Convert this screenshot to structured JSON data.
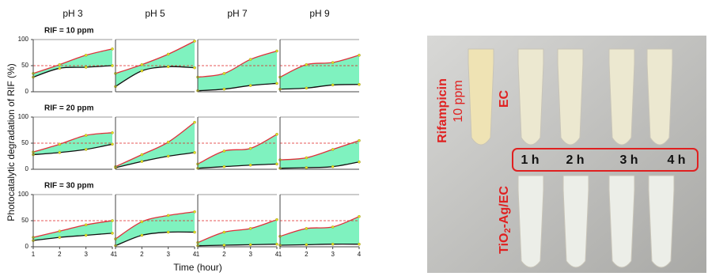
{
  "figure": {
    "column_titles": [
      "pH 3",
      "pH 5",
      "pH 7",
      "pH 9"
    ],
    "row_titles": [
      "RIF = 10 ppm",
      "RIF = 20 ppm",
      "RIF = 30 ppm"
    ],
    "y_label": "Photocatalytic degradation of RIF (%)",
    "x_label": "Time (hour)"
  },
  "photo": {
    "sample_label": "Rifampicin",
    "concentration": "10 ppm",
    "control_label": "EC",
    "times": [
      "1 h",
      "2 h",
      "3 h",
      "4 h"
    ],
    "catalyst_label": {
      "base": "TiO",
      "subscript": "2",
      "rest": "-Ag/EC"
    }
  },
  "chart_data": [
    {
      "type": "area",
      "x": [
        1,
        2,
        3,
        4
      ],
      "xlim": [
        1,
        4
      ],
      "ylim": [
        0,
        100
      ],
      "yticks": [
        0,
        50,
        100
      ],
      "hline": 50,
      "fill_color": "#7ff2bf",
      "series": [
        {
          "color": "#e0303a",
          "values": [
            35,
            52,
            70,
            82
          ]
        },
        {
          "color": "#111111",
          "values": [
            28,
            45,
            47,
            50
          ]
        }
      ]
    },
    {
      "type": "area",
      "x": [
        1,
        2,
        3,
        4
      ],
      "xlim": [
        1,
        4
      ],
      "ylim": [
        0,
        100
      ],
      "hline": 50,
      "fill_color": "#7ff2bf",
      "series": [
        {
          "color": "#e0303a",
          "values": [
            35,
            52,
            72,
            97
          ]
        },
        {
          "color": "#111111",
          "values": [
            10,
            40,
            48,
            46
          ]
        }
      ]
    },
    {
      "type": "area",
      "x": [
        1,
        2,
        3,
        4
      ],
      "xlim": [
        1,
        4
      ],
      "ylim": [
        0,
        100
      ],
      "hline": 50,
      "fill_color": "#7ff2bf",
      "series": [
        {
          "color": "#e0303a",
          "values": [
            28,
            35,
            62,
            78
          ]
        },
        {
          "color": "#111111",
          "values": [
            2,
            5,
            12,
            16
          ]
        }
      ]
    },
    {
      "type": "area",
      "x": [
        1,
        2,
        3,
        4
      ],
      "xlim": [
        1,
        4
      ],
      "ylim": [
        0,
        100
      ],
      "hline": 50,
      "fill_color": "#7ff2bf",
      "series": [
        {
          "color": "#e0303a",
          "values": [
            28,
            52,
            56,
            70
          ]
        },
        {
          "color": "#111111",
          "values": [
            5,
            7,
            13,
            14
          ]
        }
      ]
    },
    {
      "type": "area",
      "x": [
        1,
        2,
        3,
        4
      ],
      "xlim": [
        1,
        4
      ],
      "ylim": [
        0,
        100
      ],
      "yticks": [
        0,
        50,
        100
      ],
      "hline": 50,
      "fill_color": "#7ff2bf",
      "series": [
        {
          "color": "#e0303a",
          "values": [
            33,
            48,
            65,
            70
          ]
        },
        {
          "color": "#111111",
          "values": [
            28,
            32,
            38,
            48
          ]
        }
      ]
    },
    {
      "type": "area",
      "x": [
        1,
        2,
        3,
        4
      ],
      "xlim": [
        1,
        4
      ],
      "ylim": [
        0,
        100
      ],
      "hline": 50,
      "fill_color": "#7ff2bf",
      "series": [
        {
          "color": "#e0303a",
          "values": [
            5,
            28,
            52,
            90
          ]
        },
        {
          "color": "#111111",
          "values": [
            3,
            15,
            25,
            32
          ]
        }
      ]
    },
    {
      "type": "area",
      "x": [
        1,
        2,
        3,
        4
      ],
      "xlim": [
        1,
        4
      ],
      "ylim": [
        0,
        100
      ],
      "hline": 50,
      "fill_color": "#7ff2bf",
      "series": [
        {
          "color": "#e0303a",
          "values": [
            10,
            35,
            40,
            67
          ]
        },
        {
          "color": "#111111",
          "values": [
            2,
            5,
            8,
            10
          ]
        }
      ]
    },
    {
      "type": "area",
      "x": [
        1,
        2,
        3,
        4
      ],
      "xlim": [
        1,
        4
      ],
      "ylim": [
        0,
        100
      ],
      "hline": 50,
      "fill_color": "#7ff2bf",
      "series": [
        {
          "color": "#e0303a",
          "values": [
            18,
            22,
            38,
            55
          ]
        },
        {
          "color": "#111111",
          "values": [
            2,
            3,
            5,
            14
          ]
        }
      ]
    },
    {
      "type": "area",
      "x": [
        1,
        2,
        3,
        4
      ],
      "xlim": [
        1,
        4
      ],
      "ylim": [
        0,
        100
      ],
      "yticks": [
        0,
        50,
        100
      ],
      "xticks": [
        1,
        2,
        3,
        4
      ],
      "hline": 50,
      "fill_color": "#7ff2bf",
      "series": [
        {
          "color": "#e0303a",
          "values": [
            18,
            30,
            42,
            50
          ]
        },
        {
          "color": "#111111",
          "values": [
            12,
            18,
            22,
            26
          ]
        }
      ]
    },
    {
      "type": "area",
      "x": [
        1,
        2,
        3,
        4
      ],
      "xlim": [
        1,
        4
      ],
      "ylim": [
        0,
        100
      ],
      "xticks": [
        1,
        2,
        3,
        4
      ],
      "hline": 50,
      "fill_color": "#7ff2bf",
      "series": [
        {
          "color": "#e0303a",
          "values": [
            15,
            48,
            60,
            67
          ]
        },
        {
          "color": "#111111",
          "values": [
            2,
            22,
            28,
            28
          ]
        }
      ]
    },
    {
      "type": "area",
      "x": [
        1,
        2,
        3,
        4
      ],
      "xlim": [
        1,
        4
      ],
      "ylim": [
        0,
        100
      ],
      "xticks": [
        1,
        2,
        3,
        4
      ],
      "hline": 50,
      "fill_color": "#7ff2bf",
      "series": [
        {
          "color": "#e0303a",
          "values": [
            8,
            28,
            35,
            52
          ]
        },
        {
          "color": "#111111",
          "values": [
            2,
            3,
            4,
            5
          ]
        }
      ]
    },
    {
      "type": "area",
      "x": [
        1,
        2,
        3,
        4
      ],
      "xlim": [
        1,
        4
      ],
      "ylim": [
        0,
        100
      ],
      "xticks": [
        1,
        2,
        3,
        4
      ],
      "hline": 50,
      "fill_color": "#7ff2bf",
      "series": [
        {
          "color": "#e0303a",
          "values": [
            20,
            35,
            38,
            58
          ]
        },
        {
          "color": "#111111",
          "values": [
            3,
            4,
            5,
            5
          ]
        }
      ]
    }
  ]
}
